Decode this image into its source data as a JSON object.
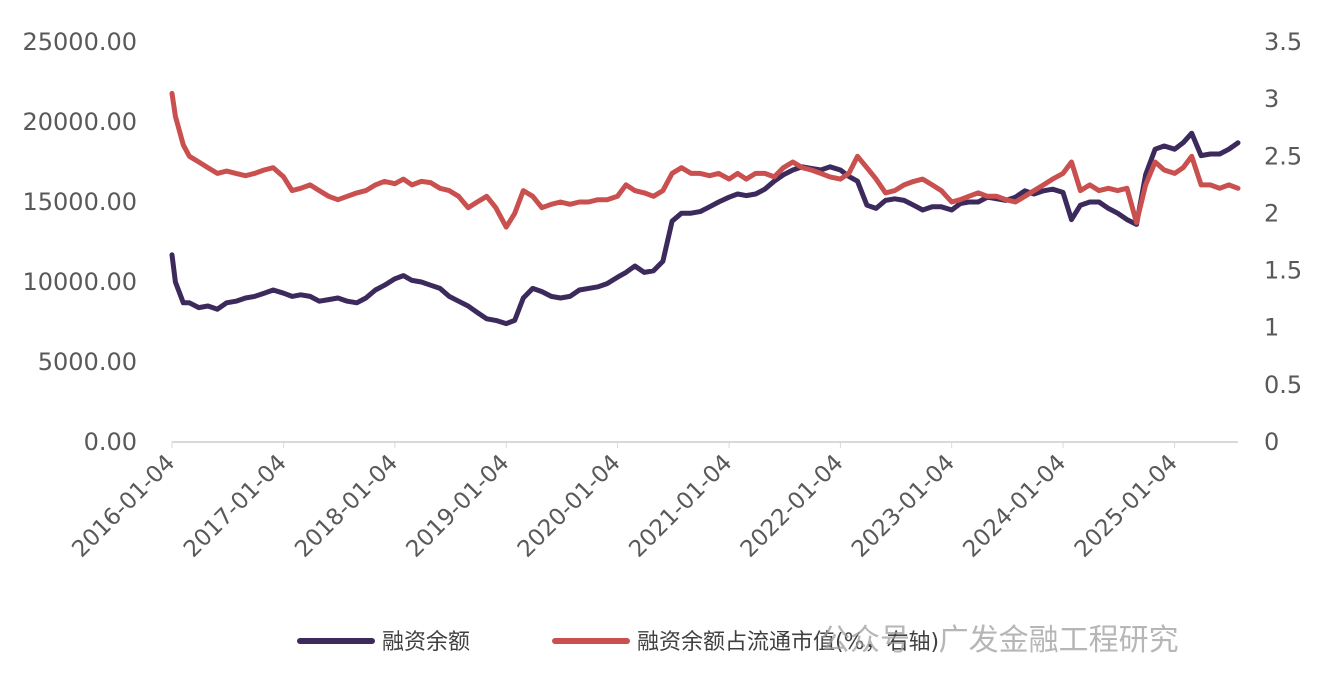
{
  "chart_data": {
    "type": "line",
    "title": "",
    "xlabel": "",
    "ylabel": "",
    "y2label": "",
    "ylim": [
      0,
      25000
    ],
    "y2lim": [
      0,
      3.5
    ],
    "y_ticks": [
      "0.00",
      "5000.00",
      "10000.00",
      "15000.00",
      "20000.00",
      "25000.00"
    ],
    "y2_ticks": [
      "0",
      "0.5",
      "1",
      "1.5",
      "2",
      "2.5",
      "3",
      "3.5"
    ],
    "x_ticks": [
      "2016-01-04",
      "2017-01-04",
      "2018-01-04",
      "2019-01-04",
      "2020-01-04",
      "2021-01-04",
      "2022-01-04",
      "2023-01-04",
      "2024-01-04",
      "2025-01-04"
    ],
    "x_range": [
      "2016-01-04",
      "2025-07-31"
    ],
    "grid": false,
    "legend_position": "bottom",
    "series": [
      {
        "name": "融资余额",
        "axis": "left",
        "color": "#3d2a5c",
        "points": [
          [
            "2016-01-04",
            11700
          ],
          [
            "2016-01-15",
            10000
          ],
          [
            "2016-02-10",
            8700
          ],
          [
            "2016-03-01",
            8700
          ],
          [
            "2016-04-01",
            8400
          ],
          [
            "2016-05-01",
            8500
          ],
          [
            "2016-06-01",
            8300
          ],
          [
            "2016-07-01",
            8700
          ],
          [
            "2016-08-01",
            8800
          ],
          [
            "2016-09-01",
            9000
          ],
          [
            "2016-10-01",
            9100
          ],
          [
            "2016-11-01",
            9300
          ],
          [
            "2016-12-01",
            9500
          ],
          [
            "2017-01-04",
            9300
          ],
          [
            "2017-02-01",
            9100
          ],
          [
            "2017-03-01",
            9200
          ],
          [
            "2017-04-01",
            9100
          ],
          [
            "2017-05-01",
            8800
          ],
          [
            "2017-06-01",
            8900
          ],
          [
            "2017-07-01",
            9000
          ],
          [
            "2017-08-01",
            8800
          ],
          [
            "2017-09-01",
            8700
          ],
          [
            "2017-10-01",
            9000
          ],
          [
            "2017-11-01",
            9500
          ],
          [
            "2017-12-01",
            9800
          ],
          [
            "2018-01-04",
            10200
          ],
          [
            "2018-02-01",
            10400
          ],
          [
            "2018-03-01",
            10100
          ],
          [
            "2018-04-01",
            10000
          ],
          [
            "2018-05-01",
            9800
          ],
          [
            "2018-06-01",
            9600
          ],
          [
            "2018-07-01",
            9100
          ],
          [
            "2018-08-01",
            8800
          ],
          [
            "2018-09-01",
            8500
          ],
          [
            "2018-10-01",
            8100
          ],
          [
            "2018-11-01",
            7700
          ],
          [
            "2018-12-01",
            7600
          ],
          [
            "2019-01-04",
            7400
          ],
          [
            "2019-02-01",
            7600
          ],
          [
            "2019-03-01",
            9000
          ],
          [
            "2019-04-01",
            9600
          ],
          [
            "2019-05-01",
            9400
          ],
          [
            "2019-06-01",
            9100
          ],
          [
            "2019-07-01",
            9000
          ],
          [
            "2019-08-01",
            9100
          ],
          [
            "2019-09-01",
            9500
          ],
          [
            "2019-10-01",
            9600
          ],
          [
            "2019-11-01",
            9700
          ],
          [
            "2019-12-01",
            9900
          ],
          [
            "2020-01-04",
            10300
          ],
          [
            "2020-02-01",
            10600
          ],
          [
            "2020-03-01",
            11000
          ],
          [
            "2020-04-01",
            10600
          ],
          [
            "2020-05-01",
            10700
          ],
          [
            "2020-06-01",
            11300
          ],
          [
            "2020-07-01",
            13800
          ],
          [
            "2020-08-01",
            14300
          ],
          [
            "2020-09-01",
            14300
          ],
          [
            "2020-10-01",
            14400
          ],
          [
            "2020-11-01",
            14700
          ],
          [
            "2020-12-01",
            15000
          ],
          [
            "2021-01-04",
            15300
          ],
          [
            "2021-02-01",
            15500
          ],
          [
            "2021-03-01",
            15400
          ],
          [
            "2021-04-01",
            15500
          ],
          [
            "2021-05-01",
            15800
          ],
          [
            "2021-06-01",
            16300
          ],
          [
            "2021-07-01",
            16700
          ],
          [
            "2021-08-01",
            17000
          ],
          [
            "2021-09-01",
            17200
          ],
          [
            "2021-10-01",
            17100
          ],
          [
            "2021-11-01",
            17000
          ],
          [
            "2021-12-01",
            17200
          ],
          [
            "2022-01-04",
            17000
          ],
          [
            "2022-02-01",
            16600
          ],
          [
            "2022-03-01",
            16300
          ],
          [
            "2022-04-01",
            14800
          ],
          [
            "2022-05-01",
            14600
          ],
          [
            "2022-06-01",
            15100
          ],
          [
            "2022-07-01",
            15200
          ],
          [
            "2022-08-01",
            15100
          ],
          [
            "2022-09-01",
            14800
          ],
          [
            "2022-10-01",
            14500
          ],
          [
            "2022-11-01",
            14700
          ],
          [
            "2022-12-01",
            14700
          ],
          [
            "2023-01-04",
            14500
          ],
          [
            "2023-02-01",
            14900
          ],
          [
            "2023-03-01",
            15000
          ],
          [
            "2023-04-01",
            15000
          ],
          [
            "2023-05-01",
            15300
          ],
          [
            "2023-06-01",
            15200
          ],
          [
            "2023-07-01",
            15100
          ],
          [
            "2023-08-01",
            15300
          ],
          [
            "2023-09-01",
            15700
          ],
          [
            "2023-10-01",
            15500
          ],
          [
            "2023-11-01",
            15700
          ],
          [
            "2023-12-01",
            15800
          ],
          [
            "2024-01-04",
            15600
          ],
          [
            "2024-02-01",
            13900
          ],
          [
            "2024-03-01",
            14800
          ],
          [
            "2024-04-01",
            15000
          ],
          [
            "2024-05-01",
            15000
          ],
          [
            "2024-06-01",
            14600
          ],
          [
            "2024-07-01",
            14300
          ],
          [
            "2024-08-01",
            13900
          ],
          [
            "2024-09-01",
            13600
          ],
          [
            "2024-10-01",
            16700
          ],
          [
            "2024-11-01",
            18300
          ],
          [
            "2024-12-01",
            18500
          ],
          [
            "2025-01-04",
            18300
          ],
          [
            "2025-02-01",
            18700
          ],
          [
            "2025-03-01",
            19300
          ],
          [
            "2025-04-01",
            17900
          ],
          [
            "2025-05-01",
            18000
          ],
          [
            "2025-06-01",
            18000
          ],
          [
            "2025-07-01",
            18300
          ],
          [
            "2025-07-31",
            18700
          ]
        ]
      },
      {
        "name": "融资余额占流通市值(%，右轴)",
        "axis": "right",
        "color": "#c9504f",
        "points": [
          [
            "2016-01-04",
            3.05
          ],
          [
            "2016-01-15",
            2.85
          ],
          [
            "2016-02-10",
            2.6
          ],
          [
            "2016-03-01",
            2.5
          ],
          [
            "2016-04-01",
            2.45
          ],
          [
            "2016-05-01",
            2.4
          ],
          [
            "2016-06-01",
            2.35
          ],
          [
            "2016-07-01",
            2.37
          ],
          [
            "2016-08-01",
            2.35
          ],
          [
            "2016-09-01",
            2.33
          ],
          [
            "2016-10-01",
            2.35
          ],
          [
            "2016-11-01",
            2.38
          ],
          [
            "2016-12-01",
            2.4
          ],
          [
            "2017-01-04",
            2.32
          ],
          [
            "2017-02-01",
            2.2
          ],
          [
            "2017-03-01",
            2.22
          ],
          [
            "2017-04-01",
            2.25
          ],
          [
            "2017-05-01",
            2.2
          ],
          [
            "2017-06-01",
            2.15
          ],
          [
            "2017-07-01",
            2.12
          ],
          [
            "2017-08-01",
            2.15
          ],
          [
            "2017-09-01",
            2.18
          ],
          [
            "2017-10-01",
            2.2
          ],
          [
            "2017-11-01",
            2.25
          ],
          [
            "2017-12-01",
            2.28
          ],
          [
            "2018-01-04",
            2.26
          ],
          [
            "2018-02-01",
            2.3
          ],
          [
            "2018-03-01",
            2.25
          ],
          [
            "2018-04-01",
            2.28
          ],
          [
            "2018-05-01",
            2.27
          ],
          [
            "2018-06-01",
            2.22
          ],
          [
            "2018-07-01",
            2.2
          ],
          [
            "2018-08-01",
            2.15
          ],
          [
            "2018-09-01",
            2.05
          ],
          [
            "2018-10-01",
            2.1
          ],
          [
            "2018-11-01",
            2.15
          ],
          [
            "2018-12-01",
            2.05
          ],
          [
            "2019-01-04",
            1.88
          ],
          [
            "2019-02-01",
            2.0
          ],
          [
            "2019-03-01",
            2.2
          ],
          [
            "2019-04-01",
            2.15
          ],
          [
            "2019-05-01",
            2.05
          ],
          [
            "2019-06-01",
            2.08
          ],
          [
            "2019-07-01",
            2.1
          ],
          [
            "2019-08-01",
            2.08
          ],
          [
            "2019-09-01",
            2.1
          ],
          [
            "2019-10-01",
            2.1
          ],
          [
            "2019-11-01",
            2.12
          ],
          [
            "2019-12-01",
            2.12
          ],
          [
            "2020-01-04",
            2.15
          ],
          [
            "2020-02-01",
            2.25
          ],
          [
            "2020-03-01",
            2.2
          ],
          [
            "2020-04-01",
            2.18
          ],
          [
            "2020-05-01",
            2.15
          ],
          [
            "2020-06-01",
            2.2
          ],
          [
            "2020-07-01",
            2.35
          ],
          [
            "2020-08-01",
            2.4
          ],
          [
            "2020-09-01",
            2.35
          ],
          [
            "2020-10-01",
            2.35
          ],
          [
            "2020-11-01",
            2.33
          ],
          [
            "2020-12-01",
            2.35
          ],
          [
            "2021-01-04",
            2.3
          ],
          [
            "2021-02-01",
            2.35
          ],
          [
            "2021-03-01",
            2.3
          ],
          [
            "2021-04-01",
            2.35
          ],
          [
            "2021-05-01",
            2.35
          ],
          [
            "2021-06-01",
            2.32
          ],
          [
            "2021-07-01",
            2.4
          ],
          [
            "2021-08-01",
            2.45
          ],
          [
            "2021-09-01",
            2.4
          ],
          [
            "2021-10-01",
            2.38
          ],
          [
            "2021-11-01",
            2.35
          ],
          [
            "2021-12-01",
            2.32
          ],
          [
            "2022-01-04",
            2.3
          ],
          [
            "2022-02-01",
            2.35
          ],
          [
            "2022-03-01",
            2.5
          ],
          [
            "2022-04-01",
            2.4
          ],
          [
            "2022-05-01",
            2.3
          ],
          [
            "2022-06-01",
            2.18
          ],
          [
            "2022-07-01",
            2.2
          ],
          [
            "2022-08-01",
            2.25
          ],
          [
            "2022-09-01",
            2.28
          ],
          [
            "2022-10-01",
            2.3
          ],
          [
            "2022-11-01",
            2.25
          ],
          [
            "2022-12-01",
            2.2
          ],
          [
            "2023-01-04",
            2.1
          ],
          [
            "2023-02-01",
            2.12
          ],
          [
            "2023-03-01",
            2.15
          ],
          [
            "2023-04-01",
            2.18
          ],
          [
            "2023-05-01",
            2.15
          ],
          [
            "2023-06-01",
            2.15
          ],
          [
            "2023-07-01",
            2.12
          ],
          [
            "2023-08-01",
            2.1
          ],
          [
            "2023-09-01",
            2.15
          ],
          [
            "2023-10-01",
            2.2
          ],
          [
            "2023-11-01",
            2.25
          ],
          [
            "2023-12-01",
            2.3
          ],
          [
            "2024-01-04",
            2.35
          ],
          [
            "2024-02-01",
            2.45
          ],
          [
            "2024-03-01",
            2.2
          ],
          [
            "2024-04-01",
            2.25
          ],
          [
            "2024-05-01",
            2.2
          ],
          [
            "2024-06-01",
            2.22
          ],
          [
            "2024-07-01",
            2.2
          ],
          [
            "2024-08-01",
            2.22
          ],
          [
            "2024-09-01",
            1.92
          ],
          [
            "2024-10-01",
            2.25
          ],
          [
            "2024-11-01",
            2.45
          ],
          [
            "2024-12-01",
            2.38
          ],
          [
            "2025-01-04",
            2.35
          ],
          [
            "2025-02-01",
            2.4
          ],
          [
            "2025-03-01",
            2.5
          ],
          [
            "2025-04-01",
            2.25
          ],
          [
            "2025-05-01",
            2.25
          ],
          [
            "2025-06-01",
            2.22
          ],
          [
            "2025-07-01",
            2.25
          ],
          [
            "2025-07-31",
            2.22
          ]
        ]
      }
    ]
  },
  "watermark": "公众号 · 广发金融工程研究"
}
